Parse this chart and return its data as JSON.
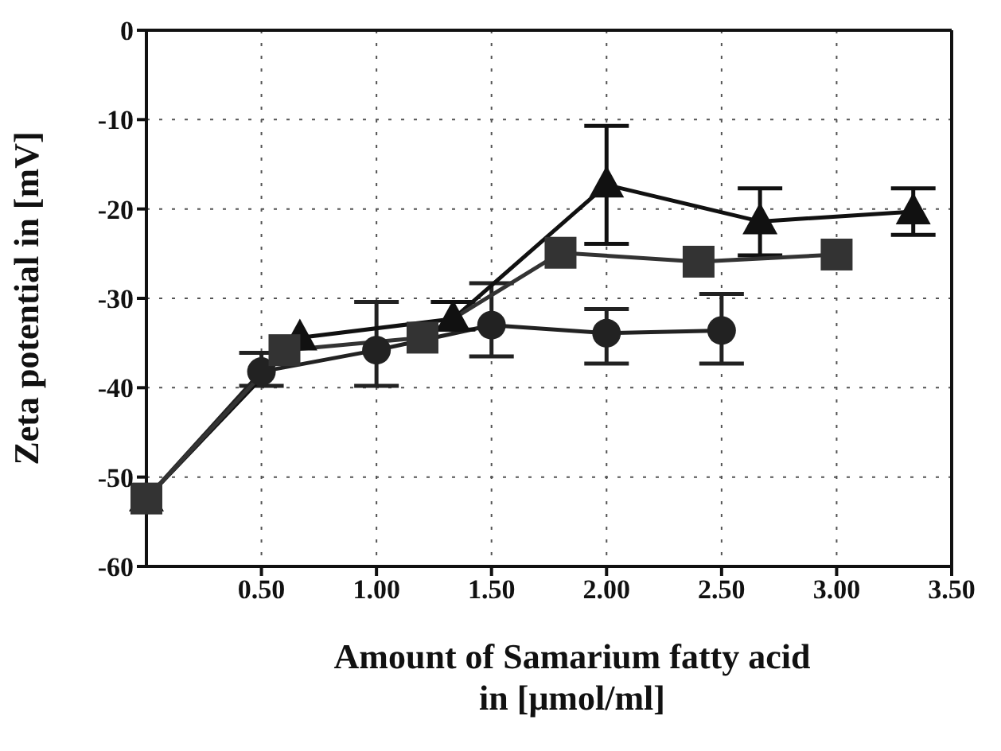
{
  "chart_data": {
    "type": "line",
    "xlabel": "Amount of Samarium fatty acid in [μmol/ml]",
    "ylabel": "Zeta potential in [mV]",
    "xlim": [
      0,
      3.5
    ],
    "xticks": [
      {
        "value": 0.5,
        "label": "0.50"
      },
      {
        "value": 1,
        "label": "1.00"
      },
      {
        "value": 1.5,
        "label": "1.50"
      },
      {
        "value": 2,
        "label": "2.00"
      },
      {
        "value": 2.5,
        "label": "2.50"
      },
      {
        "value": 3,
        "label": "3.00"
      },
      {
        "value": 3.5,
        "label": "3.50"
      }
    ],
    "ylim": [
      -60,
      0
    ],
    "yticks": [
      -60,
      -50,
      -40,
      -30,
      -20,
      -10,
      0
    ],
    "grid": true,
    "series": [
      {
        "color": "#222222",
        "marker": "circle",
        "x": [
          0,
          0.5,
          1,
          1.5,
          2,
          2.5
        ],
        "values": [
          -52.4,
          -38.2,
          -35.8,
          -33,
          -33.9,
          -33.6
        ],
        "errors": [
          null,
          [
            -39.8,
            -36.1
          ],
          [
            -39.8,
            -30.4
          ],
          [
            -36.5,
            -28.3
          ],
          [
            -37.3,
            -31.2
          ],
          [
            -37.3,
            -29.5
          ]
        ]
      },
      {
        "color": "#111111",
        "marker": "triangle",
        "x": [
          0,
          0.667,
          1.333,
          2,
          2.667,
          3.333
        ],
        "values": [
          -52.4,
          -34.4,
          -32.3,
          -17.3,
          -21.4,
          -20.3
        ],
        "errors": [
          null,
          null,
          [
            -33.5,
            -30.4
          ],
          [
            -23.9,
            -10.7
          ],
          [
            -25.2,
            -17.7
          ],
          [
            -22.9,
            -17.7
          ]
        ]
      },
      {
        "color": "#333333",
        "marker": "square",
        "x": [
          0,
          0.6,
          1.2,
          1.8,
          2.4,
          3
        ],
        "values": [
          -52.4,
          -35.8,
          -34.4,
          -24.9,
          -25.9,
          -25.1
        ]
      }
    ]
  }
}
